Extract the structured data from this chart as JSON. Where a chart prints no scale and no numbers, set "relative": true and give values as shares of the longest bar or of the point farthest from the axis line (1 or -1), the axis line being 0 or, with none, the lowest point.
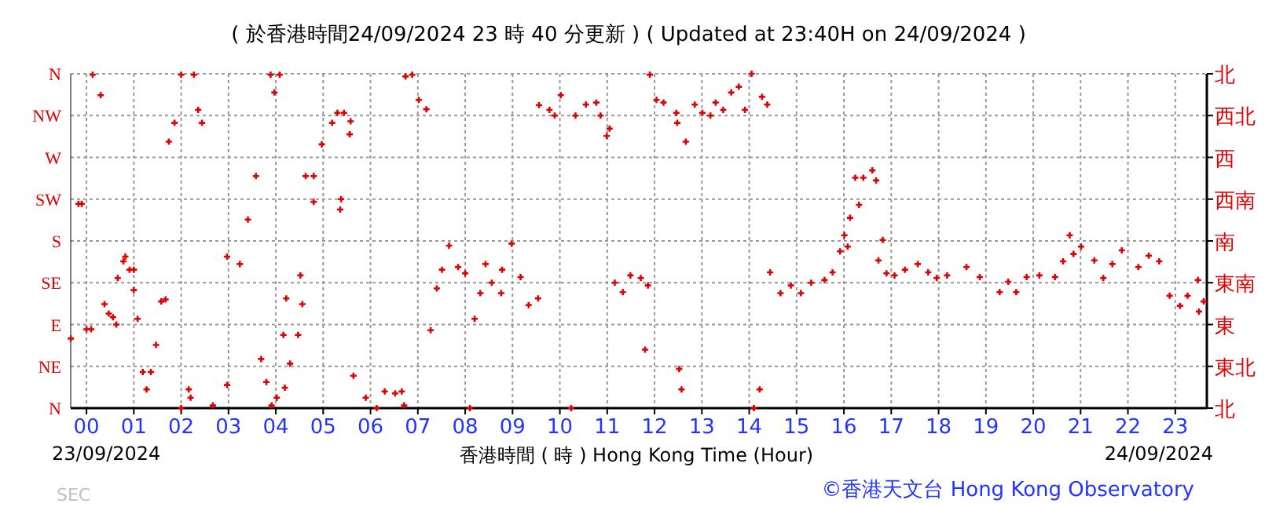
{
  "chart_data": {
    "type": "scatter",
    "title": "( 於香港時間24/09/2024 23 時 40 分更新 ) ( Updated at 23:40H on 24/09/2024 )",
    "xlabel": "香港時間 ( 時 ) Hong Kong Time (Hour)",
    "annotations": [
      "23/09/2024",
      "24/09/2024",
      "©香港天文台 Hong Kong Observatory",
      "SEC"
    ],
    "series": [
      {
        "color": "#e00000",
        "x": [
          -0.33,
          -0.17,
          -0.1,
          0.0,
          0.1,
          0.13,
          0.3,
          0.38,
          0.47,
          0.56,
          0.63,
          0.66,
          0.78,
          0.82,
          0.91,
          1.0,
          1.0,
          1.08,
          1.19,
          1.27,
          1.36,
          1.47,
          1.58,
          1.67,
          1.74,
          1.86,
          2.0,
          2.0,
          2.16,
          2.2,
          2.27,
          2.36,
          2.44,
          2.67,
          2.97,
          2.97,
          3.24,
          3.41,
          3.58,
          3.69,
          3.8,
          3.89,
          3.91,
          3.97,
          4.02,
          4.08,
          4.16,
          4.19,
          4.22,
          4.3,
          4.47,
          4.52,
          4.56,
          4.63,
          4.8,
          4.8,
          4.97,
          5.19,
          5.3,
          5.36,
          5.38,
          5.44,
          5.56,
          5.58,
          5.64,
          5.9,
          6.13,
          6.3,
          6.52,
          6.66,
          6.71,
          6.74,
          6.88,
          7.02,
          7.18,
          7.27,
          7.4,
          7.51,
          7.66,
          7.85,
          8.0,
          8.1,
          8.2,
          8.32,
          8.43,
          8.56,
          8.76,
          8.78,
          8.98,
          9.17,
          9.34,
          9.54,
          9.56,
          9.78,
          9.89,
          10.02,
          10.24,
          10.33,
          10.55,
          10.77,
          10.86,
          10.99,
          11.05,
          11.16,
          11.33,
          11.49,
          11.71,
          11.8,
          11.86,
          11.9,
          12.04,
          12.19,
          12.46,
          12.48,
          12.52,
          12.57,
          12.66,
          12.85,
          13.01,
          13.18,
          13.29,
          13.45,
          13.62,
          13.78,
          13.91,
          14.05,
          14.1,
          14.22,
          14.27,
          14.38,
          14.44,
          14.66,
          14.88,
          15.09,
          15.31,
          15.59,
          15.76,
          15.92,
          16.01,
          16.08,
          16.13,
          16.24,
          16.32,
          16.41,
          16.6,
          16.68,
          16.73,
          16.82,
          16.9,
          17.07,
          17.29,
          17.56,
          17.78,
          17.96,
          18.18,
          18.59,
          18.87,
          19.29,
          19.47,
          19.64,
          19.86,
          20.13,
          20.46,
          20.63,
          20.77,
          20.85,
          21.01,
          21.29,
          21.48,
          21.67,
          21.87,
          22.22,
          22.44,
          22.66,
          22.88,
          23.1,
          23.26,
          23.48,
          23.5,
          23.6
        ],
        "values": [
          0.208,
          0.611,
          0.611,
          0.236,
          0.236,
          0.997,
          0.936,
          0.311,
          0.283,
          0.272,
          0.25,
          0.389,
          0.439,
          0.453,
          0.414,
          0.414,
          0.353,
          0.267,
          0.108,
          0.056,
          0.108,
          0.189,
          0.319,
          0.325,
          0.797,
          0.853,
          0.997,
          0,
          0.056,
          0.031,
          0.997,
          0.892,
          0.853,
          0.008,
          0.069,
          0.453,
          0.431,
          0.564,
          0.694,
          0.147,
          0.078,
          0.997,
          0.008,
          0.944,
          0.031,
          0.997,
          0.219,
          0.061,
          0.328,
          0.133,
          0.219,
          0.397,
          0.311,
          0.694,
          0.694,
          0.617,
          0.789,
          0.853,
          0.883,
          0.594,
          0.625,
          0.883,
          0.819,
          0.858,
          0.097,
          0.031,
          0,
          0.05,
          0.044,
          0.05,
          0.008,
          0.992,
          0.997,
          0.922,
          0.894,
          0.233,
          0.358,
          0.414,
          0.486,
          0.422,
          0.403,
          0,
          0.267,
          0.344,
          0.431,
          0.375,
          0.344,
          0.414,
          0.492,
          0.392,
          0.308,
          0.328,
          0.906,
          0.892,
          0.875,
          0.936,
          0,
          0.875,
          0.908,
          0.914,
          0.875,
          0.814,
          0.836,
          0.375,
          0.347,
          0.397,
          0.389,
          0.175,
          0.367,
          0.997,
          0.922,
          0.914,
          0.883,
          0.853,
          0.117,
          0.056,
          0.797,
          0.908,
          0.883,
          0.875,
          0.914,
          0.892,
          0.944,
          0.961,
          0.892,
          1,
          0,
          0.056,
          0.931,
          0.908,
          0.406,
          0.344,
          0.367,
          0.344,
          0.375,
          0.383,
          0.406,
          0.469,
          0.517,
          0.483,
          0.569,
          0.689,
          0.608,
          0.689,
          0.711,
          0.681,
          0.442,
          0.503,
          0.403,
          0.397,
          0.414,
          0.431,
          0.406,
          0.389,
          0.397,
          0.422,
          0.392,
          0.347,
          0.378,
          0.347,
          0.392,
          0.397,
          0.392,
          0.439,
          0.517,
          0.461,
          0.483,
          0.442,
          0.389,
          0.431,
          0.472,
          0.422,
          0.456,
          0.439,
          0.336,
          0.306,
          0.336,
          0.383,
          0.289,
          0.319
        ]
      }
    ],
    "relative": true,
    "y_categories": [
      "N",
      "NW",
      "W",
      "SW",
      "S",
      "SE",
      "E",
      "NE",
      "N"
    ],
    "y2_categories": [
      "北",
      "西北",
      "西",
      "西南",
      "南",
      "東南",
      "東",
      "東北",
      "北"
    ],
    "marker": "cross",
    "xlim": [
      -0.333,
      23.667
    ],
    "xticks": [
      {
        "value": 0,
        "label": "00"
      },
      {
        "value": 1,
        "label": "01"
      },
      {
        "value": 2,
        "label": "02"
      },
      {
        "value": 3,
        "label": "03"
      },
      {
        "value": 4,
        "label": "04"
      },
      {
        "value": 5,
        "label": "05"
      },
      {
        "value": 6,
        "label": "06"
      },
      {
        "value": 7,
        "label": "07"
      },
      {
        "value": 8,
        "label": "08"
      },
      {
        "value": 9,
        "label": "09"
      },
      10,
      11,
      12,
      13,
      14,
      15,
      16,
      17,
      18,
      19,
      20,
      21,
      22,
      23
    ],
    "grid": true
  }
}
